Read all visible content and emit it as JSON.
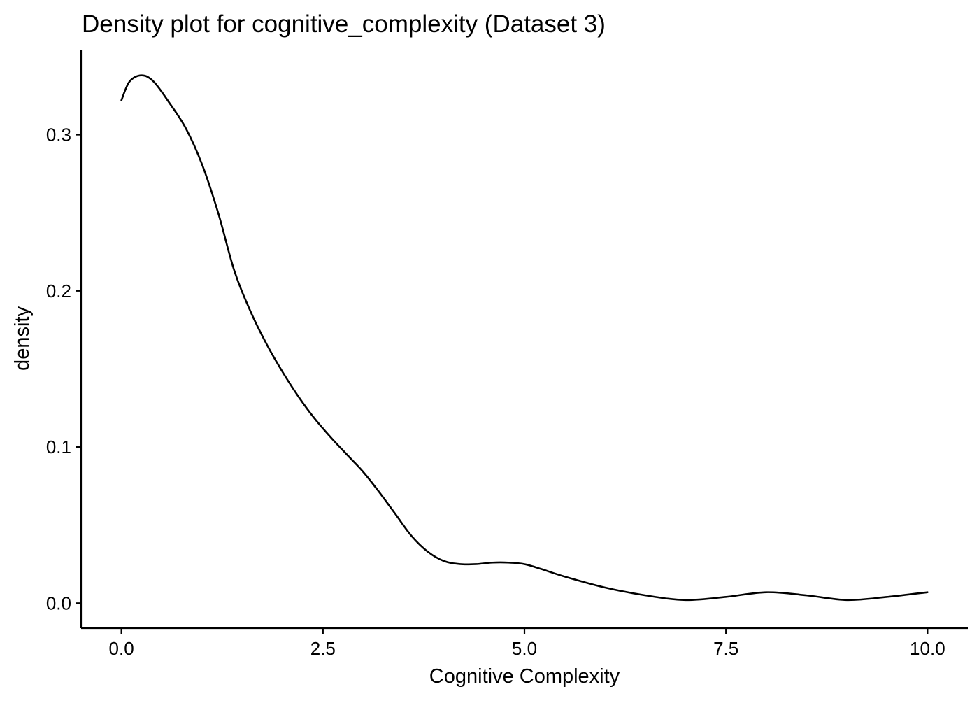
{
  "chart_data": {
    "type": "line",
    "title": "Density plot for cognitive_complexity (Dataset 3)",
    "xlabel": "Cognitive Complexity",
    "ylabel": "density",
    "xlim": [
      -0.5,
      10.5
    ],
    "ylim": [
      -0.016,
      0.354
    ],
    "x_ticks": [
      0.0,
      2.5,
      5.0,
      7.5,
      10.0
    ],
    "x_tick_labels": [
      "0.0",
      "2.5",
      "5.0",
      "7.5",
      "10.0"
    ],
    "y_ticks": [
      0.0,
      0.1,
      0.2,
      0.3
    ],
    "y_tick_labels": [
      "0.0",
      "0.1",
      "0.2",
      "0.3"
    ],
    "grid": false,
    "legend": "none",
    "line_color": "#000000",
    "series": [
      {
        "x": [
          0.0,
          0.1,
          0.25,
          0.4,
          0.6,
          0.8,
          1.0,
          1.2,
          1.4,
          1.6,
          1.8,
          2.0,
          2.2,
          2.4,
          2.6,
          2.8,
          3.0,
          3.2,
          3.4,
          3.6,
          3.8,
          4.0,
          4.2,
          4.4,
          4.6,
          4.8,
          5.0,
          5.2,
          5.5,
          6.0,
          6.5,
          7.0,
          7.5,
          8.0,
          8.5,
          9.0,
          9.5,
          10.0
        ],
        "y": [
          0.322,
          0.334,
          0.338,
          0.334,
          0.32,
          0.304,
          0.281,
          0.25,
          0.213,
          0.187,
          0.166,
          0.148,
          0.132,
          0.118,
          0.106,
          0.095,
          0.084,
          0.071,
          0.057,
          0.043,
          0.033,
          0.027,
          0.025,
          0.025,
          0.026,
          0.026,
          0.025,
          0.022,
          0.017,
          0.01,
          0.005,
          0.002,
          0.004,
          0.007,
          0.005,
          0.002,
          0.004,
          0.007
        ]
      }
    ]
  }
}
